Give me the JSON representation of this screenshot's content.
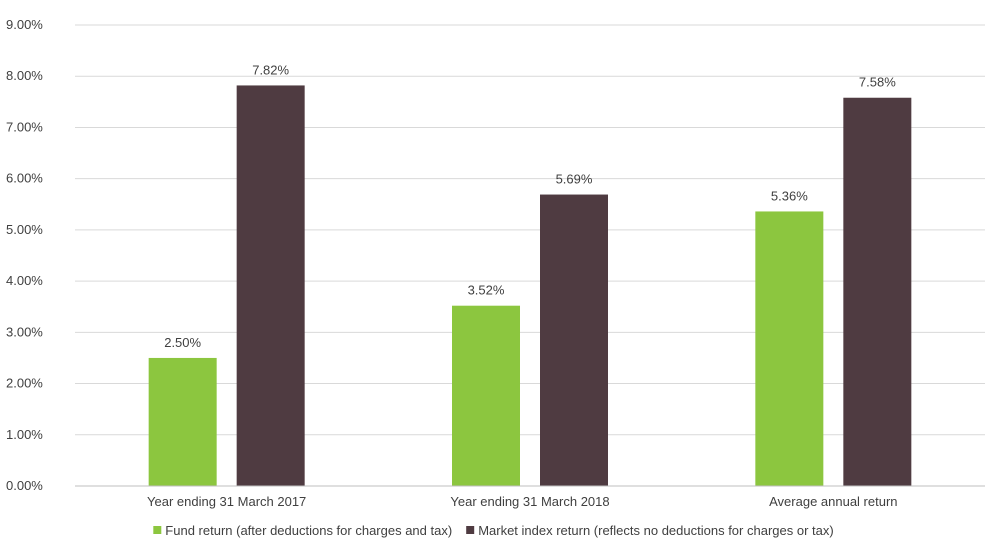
{
  "chart_data": {
    "type": "bar",
    "categories": [
      "Year ending 31 March 2017",
      "Year ending 31 March 2018",
      "Average annual return"
    ],
    "series": [
      {
        "name": "Fund return (after deductions for charges and tax)",
        "values": [
          2.5,
          3.52,
          5.36
        ],
        "labels": [
          "2.50%",
          "3.52%",
          "5.36%"
        ],
        "color": "#8cc63f"
      },
      {
        "name": "Market index return (reflects no deductions for charges or tax)",
        "values": [
          7.82,
          5.69,
          7.58
        ],
        "labels": [
          "7.82%",
          "5.69%",
          "7.58%"
        ],
        "color": "#4f3b41"
      }
    ],
    "ylim": [
      0,
      9
    ],
    "yticks": [
      "0.00%",
      "1.00%",
      "2.00%",
      "3.00%",
      "4.00%",
      "5.00%",
      "6.00%",
      "7.00%",
      "8.00%",
      "9.00%"
    ],
    "grid": true,
    "legend_position": "bottom",
    "gridline_color": "#d9d9d9",
    "axis_color": "#bfbfbf"
  }
}
